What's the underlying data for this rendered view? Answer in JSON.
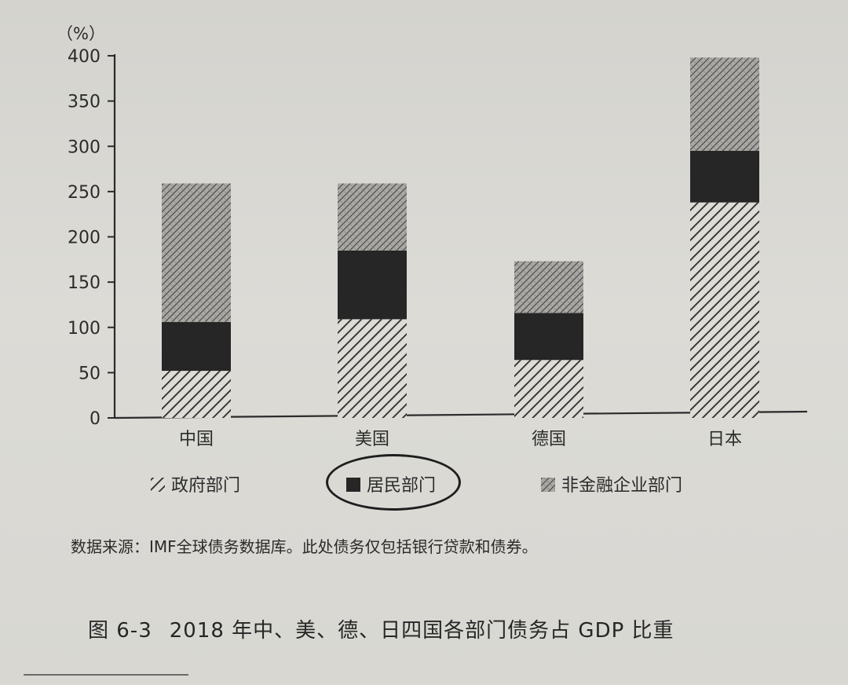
{
  "chart_data": {
    "type": "bar",
    "stacked": true,
    "unit_label": "（%）",
    "categories": [
      "中国",
      "美国",
      "德国",
      "日本"
    ],
    "series": [
      {
        "name": "政府部门",
        "values": [
          52,
          109,
          64,
          238
        ],
        "pattern": "diagonal-light"
      },
      {
        "name": "居民部门",
        "values": [
          54,
          76,
          52,
          57
        ],
        "pattern": "solid-dark"
      },
      {
        "name": "非金融企业部门",
        "values": [
          153,
          74,
          57,
          103
        ],
        "pattern": "crosshatch"
      }
    ],
    "ylim": [
      0,
      400
    ],
    "yticks": [
      "0",
      "50",
      "100",
      "150",
      "200",
      "250",
      "300",
      "350",
      "400"
    ],
    "ytick_values": [
      0,
      50,
      100,
      150,
      200,
      250,
      300,
      350,
      400
    ],
    "grid": false,
    "legend_position": "bottom",
    "colors": {
      "solid": "#262626",
      "hatch": "#2e2e2e",
      "background": "#d9d8d3"
    }
  },
  "source_note": "数据来源：IMF全球债务数据库。此处债务仅包括银行贷款和债券。",
  "caption": {
    "number": "图 6-3",
    "title": "2018 年中、美、德、日四国各部门债务占 GDP 比重"
  }
}
